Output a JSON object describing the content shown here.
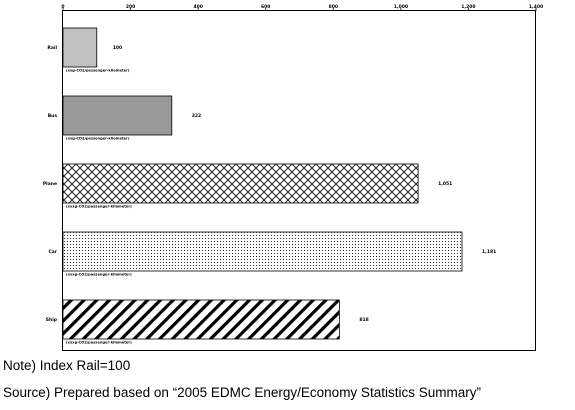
{
  "chart_data": {
    "type": "bar",
    "orientation": "horizontal",
    "categories": [
      "Rail",
      "Bus",
      "Plane",
      "Car",
      "Ship"
    ],
    "values": [
      100,
      322,
      1051,
      1181,
      818
    ],
    "value_labels": [
      "100",
      "322",
      "1,051",
      "1,181",
      "818"
    ],
    "sub_labels": [
      "(xxg-CO2/passenger-kilometer)",
      "(xxg-CO2/passenger-kilometer)",
      "(xxxg-CO2/passenger-kilometer)",
      "(xxxg-CO2/passenger-kilometer)",
      "(xxxg-CO2/passenger-kilometer)"
    ],
    "xlim": [
      0,
      1400
    ],
    "xticks": [
      0,
      200,
      400,
      600,
      800,
      1000,
      1200,
      1400
    ],
    "xtick_labels": [
      "0",
      "200",
      "400",
      "600",
      "800",
      "1,000",
      "1,200",
      "1,400"
    ],
    "patterns": [
      "solid-light-gray",
      "solid-dark-gray",
      "crosshatch",
      "dots",
      "diagonal-stripes"
    ],
    "colors": [
      "#c0c0c0",
      "#999999",
      "#000000",
      "#000000",
      "#000000"
    ],
    "grid": false,
    "title": "",
    "xlabel": "",
    "ylabel": ""
  },
  "notes": {
    "note": "Note)  Index Rail=100",
    "source": "Source)  Prepared based on “2005 EDMC Energy/Economy Statistics Summary”"
  }
}
